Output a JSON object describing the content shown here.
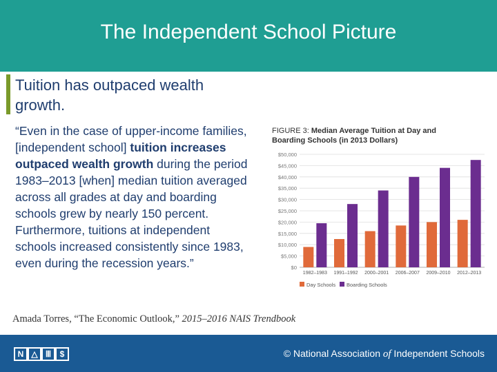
{
  "slide": {
    "title": "The Independent School Picture",
    "heading": "Tuition has outpaced wealth growth.",
    "quote_open": "“Even in the case of upper-income families, [independent school] ",
    "quote_bold": "tuition increases outpaced wealth growth",
    "quote_rest": " during the period 1983–2013 [when] median tuition averaged across all grades at day and boarding schools grew by nearly 150 percent. Furthermore, tuitions at independent schools increased consistently since 1983, even during the recession years.”",
    "citation_author": "Amada Torres, “The Economic Outlook,” ",
    "citation_source": "2015–2016 NAIS Trendbook"
  },
  "footer": {
    "logo_letters": [
      "N",
      "△",
      "Ⅲ",
      "$"
    ],
    "org_prefix": "© National Association ",
    "org_of": "of",
    "org_suffix": " Independent Schools"
  },
  "colors": {
    "header": "#1f9e93",
    "footer": "#1a5a94",
    "day": "#e06a3a",
    "boarding": "#6b2d8f",
    "accent": "#7a9a2a"
  },
  "chart_data": {
    "type": "bar",
    "title_prefix": "FIGURE 3: ",
    "title": "Median Average Tuition at Day and Boarding Schools (in 2013 Dollars)",
    "categories": [
      "1982–1983",
      "1991–1992",
      "2000–2001",
      "2006–2007",
      "2009–2010",
      "2012–2013"
    ],
    "series": [
      {
        "name": "Day Schools",
        "values": [
          9000,
          12500,
          16000,
          18500,
          20000,
          21000
        ]
      },
      {
        "name": "Boarding Schools",
        "values": [
          19500,
          28000,
          34000,
          40000,
          44000,
          47500
        ]
      }
    ],
    "yticks": [
      "$0",
      "$5,000",
      "$10,000",
      "$15,000",
      "$20,000",
      "$25,000",
      "$30,000",
      "$35,000",
      "$40,000",
      "$45,000",
      "$50,000"
    ],
    "ylim": [
      0,
      50000
    ],
    "legend_position": "bottom"
  }
}
